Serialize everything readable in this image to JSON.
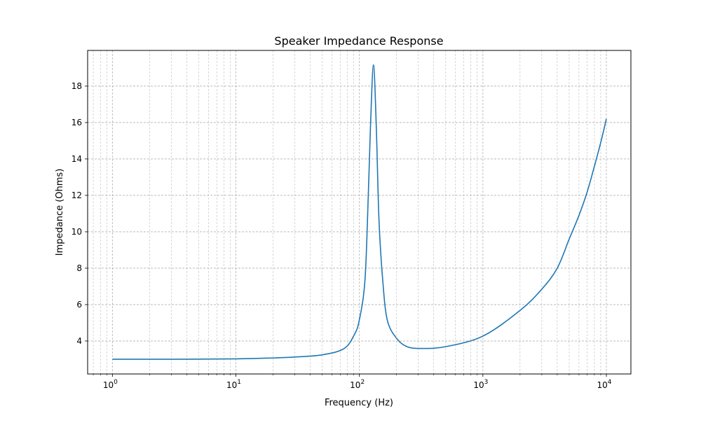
{
  "chart_data": {
    "type": "line",
    "title": "Speaker Impedance Response",
    "xlabel": "Frequency (Hz)",
    "ylabel": "Impedance (Ohms)",
    "xscale": "log",
    "xlim": [
      0.63,
      15800
    ],
    "ylim": [
      2.19,
      19.96
    ],
    "grid": "major and minor, dashed",
    "x_ticks": [
      {
        "base": "10",
        "exp": "0",
        "value": 1
      },
      {
        "base": "10",
        "exp": "1",
        "value": 10
      },
      {
        "base": "10",
        "exp": "2",
        "value": 100
      },
      {
        "base": "10",
        "exp": "3",
        "value": 1000
      },
      {
        "base": "10",
        "exp": "4",
        "value": 10000
      }
    ],
    "y_ticks": [
      "4",
      "6",
      "8",
      "10",
      "12",
      "14",
      "16",
      "18"
    ],
    "color": "#1f77b4",
    "series": [
      {
        "x": [
          1,
          3,
          10,
          20,
          30,
          50,
          75,
          91,
          100,
          111,
          118,
          123,
          130,
          137,
          144,
          154,
          168,
          200,
          243,
          316,
          500,
          1000,
          2000,
          3000,
          4000,
          5000,
          6000,
          7000,
          8000,
          9000,
          10000
        ],
        "y": [
          3.0,
          3.0,
          3.02,
          3.07,
          3.12,
          3.24,
          3.58,
          4.35,
          5.17,
          7.35,
          11.96,
          15.8,
          19.17,
          15.8,
          10.7,
          7.47,
          5.17,
          4.15,
          3.69,
          3.59,
          3.69,
          4.27,
          5.68,
          6.85,
          8.0,
          9.6,
          10.9,
          12.2,
          13.6,
          14.9,
          16.2
        ]
      }
    ]
  }
}
